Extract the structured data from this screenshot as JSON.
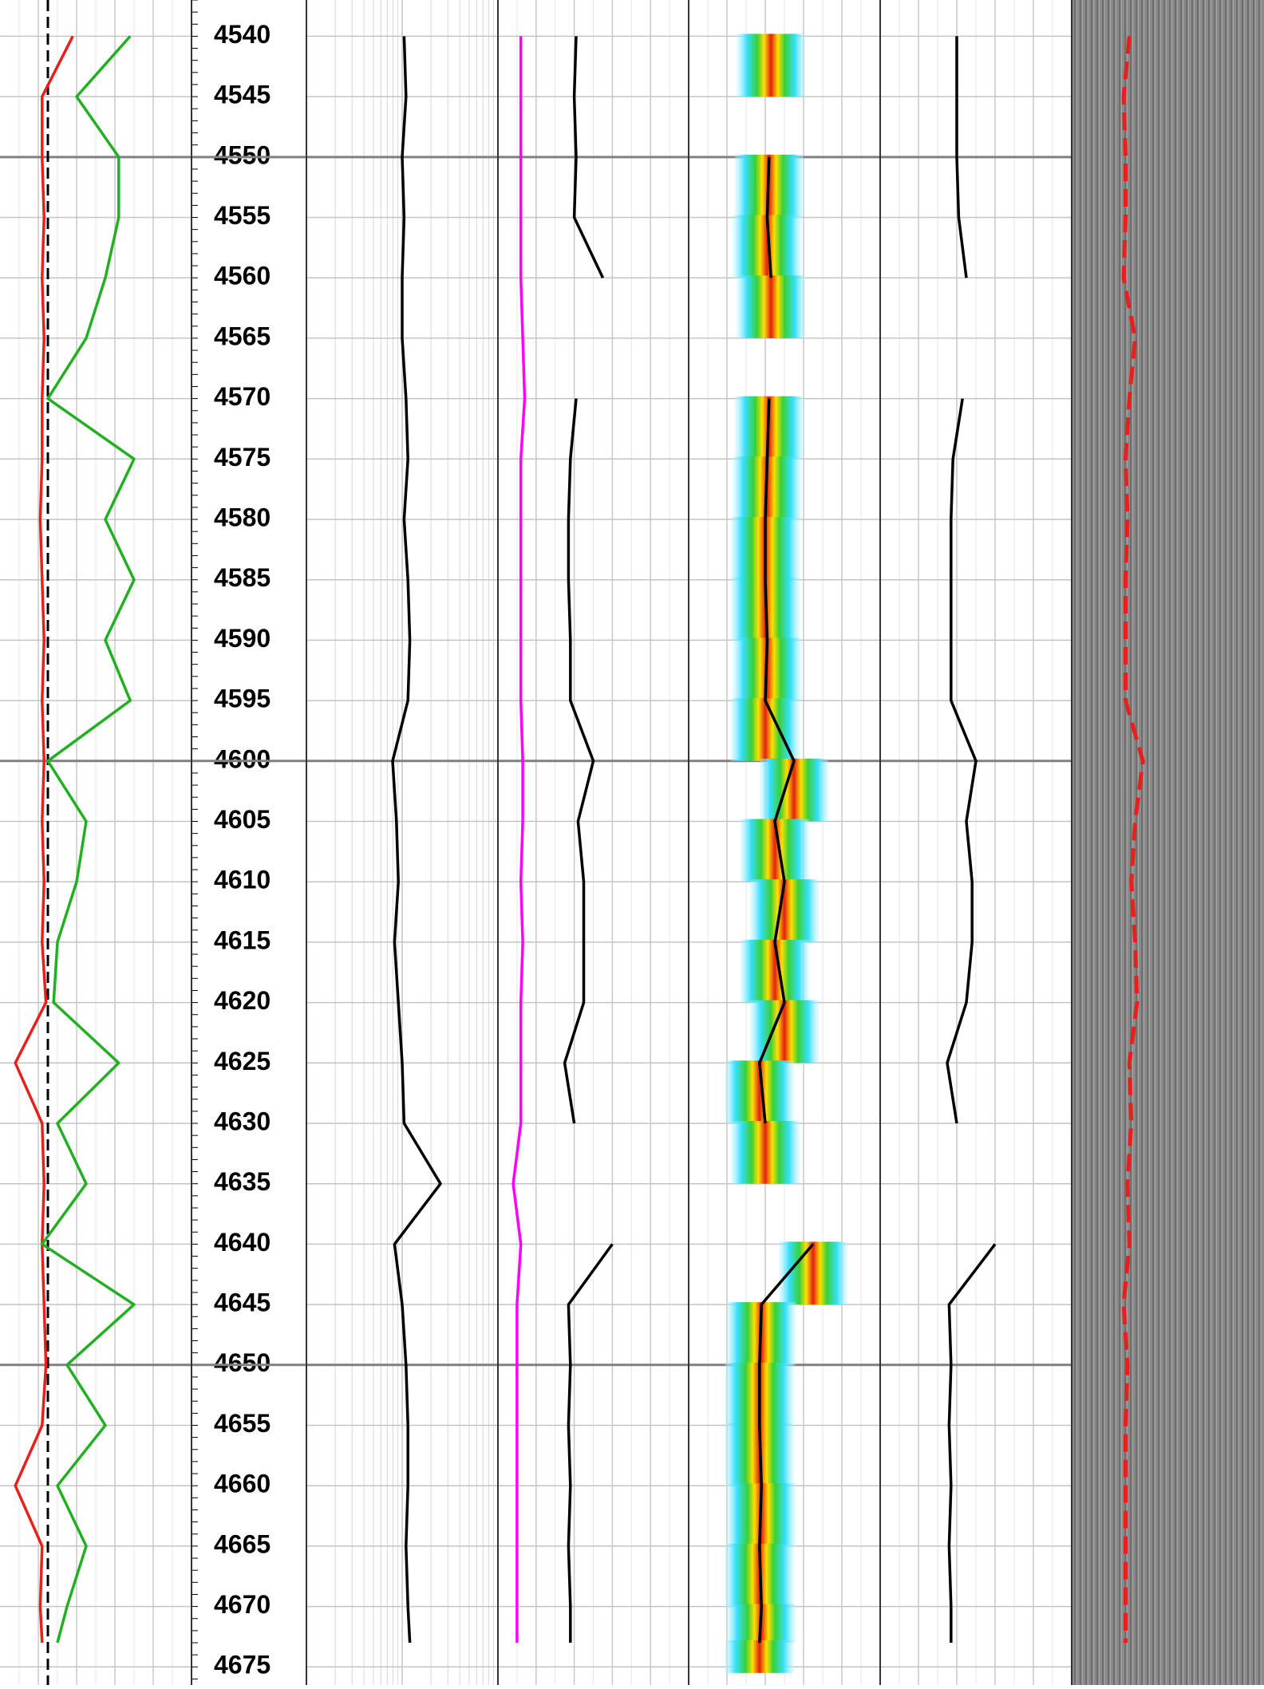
{
  "chart_data": {
    "type": "well-log",
    "ylim": [
      4537,
      4676.5
    ],
    "yticks": [
      4540,
      4545,
      4550,
      4555,
      4560,
      4565,
      4570,
      4575,
      4580,
      4585,
      4590,
      4595,
      4600,
      4605,
      4610,
      4615,
      4620,
      4625,
      4630,
      4635,
      4640,
      4645,
      4650,
      4655,
      4660,
      4665,
      4670,
      4675
    ],
    "major_lines": [
      4550,
      4600,
      4650
    ],
    "xlim": [
      0,
      1
    ],
    "grid": true,
    "depth": [
      4540,
      4545,
      4550,
      4555,
      4560,
      4565,
      4570,
      4575,
      4580,
      4585,
      4590,
      4595,
      4600,
      4605,
      4610,
      4615,
      4620,
      4625,
      4630,
      4635,
      4640,
      4645,
      4650,
      4655,
      4660,
      4665,
      4670,
      4673
    ],
    "cutoff": {
      "track": 0,
      "value": 0.25,
      "color": "#000000"
    },
    "series": [
      {
        "track": 0,
        "color": "#e8201c",
        "values": [
          0.38,
          0.22,
          0.22,
          0.23,
          0.22,
          0.23,
          0.22,
          0.22,
          0.21,
          0.22,
          0.23,
          0.22,
          0.23,
          0.22,
          0.23,
          0.22,
          0.24,
          0.08,
          0.22,
          0.23,
          0.22,
          0.23,
          0.24,
          0.22,
          0.08,
          0.22,
          0.21,
          0.22
        ]
      },
      {
        "track": 0,
        "color": "#22b022",
        "values": [
          0.68,
          0.4,
          0.62,
          0.62,
          0.55,
          0.45,
          0.25,
          0.7,
          0.55,
          0.7,
          0.55,
          0.68,
          0.25,
          0.45,
          0.4,
          0.3,
          0.28,
          0.62,
          0.3,
          0.45,
          0.22,
          0.7,
          0.35,
          0.55,
          0.3,
          0.45,
          0.35,
          0.3
        ]
      },
      {
        "track": 1,
        "color": "#000000",
        "values": [
          0.51,
          0.52,
          0.5,
          0.51,
          0.5,
          0.5,
          0.52,
          0.53,
          0.51,
          0.53,
          0.54,
          0.53,
          0.45,
          0.47,
          0.48,
          0.46,
          0.48,
          0.5,
          0.51,
          0.7,
          0.46,
          0.5,
          0.52,
          0.53,
          0.53,
          0.52,
          0.53,
          0.54
        ]
      },
      {
        "track": 2,
        "color": "#ff00ff",
        "values": [
          0.12,
          0.12,
          0.12,
          0.12,
          0.12,
          0.13,
          0.14,
          0.12,
          0.12,
          0.12,
          0.12,
          0.12,
          0.13,
          0.13,
          0.12,
          0.13,
          0.12,
          0.12,
          0.12,
          0.08,
          0.12,
          0.1,
          0.1,
          0.1,
          0.1,
          0.1,
          0.1,
          0.1
        ]
      },
      {
        "track": 2,
        "color": "#000000",
        "values": [
          0.41,
          0.4,
          0.41,
          0.4,
          0.55,
          null,
          0.41,
          0.38,
          0.37,
          0.37,
          0.38,
          0.38,
          0.5,
          0.42,
          0.45,
          0.45,
          0.45,
          0.35,
          0.4,
          null,
          0.6,
          0.37,
          0.38,
          0.37,
          0.38,
          0.37,
          0.38,
          0.38
        ]
      },
      {
        "track": 3,
        "color": "#000000",
        "band": true,
        "values": [
          0.43,
          null,
          0.42,
          0.41,
          0.43,
          null,
          0.42,
          0.41,
          0.4,
          0.4,
          0.41,
          0.4,
          0.55,
          0.45,
          0.5,
          0.45,
          0.5,
          0.37,
          0.4,
          null,
          0.65,
          0.38,
          0.37,
          0.37,
          0.38,
          0.37,
          0.38,
          0.37
        ]
      },
      {
        "track": 4,
        "color": "#000000",
        "values": [
          0.4,
          0.4,
          0.4,
          0.41,
          0.45,
          null,
          0.43,
          0.38,
          0.37,
          0.37,
          0.37,
          0.37,
          0.5,
          0.45,
          0.48,
          0.48,
          0.45,
          0.35,
          0.4,
          null,
          0.6,
          0.36,
          0.37,
          0.36,
          0.37,
          0.36,
          0.37,
          0.37
        ]
      },
      {
        "track": 5,
        "color": "#e8201c",
        "dash": true,
        "values": [
          0.3,
          0.27,
          0.28,
          0.28,
          0.27,
          0.33,
          0.3,
          0.28,
          0.29,
          0.28,
          0.28,
          0.28,
          0.37,
          0.33,
          0.31,
          0.33,
          0.34,
          0.3,
          0.31,
          0.29,
          0.3,
          0.27,
          0.29,
          0.28,
          0.28,
          0.28,
          0.28,
          0.28
        ]
      }
    ]
  }
}
